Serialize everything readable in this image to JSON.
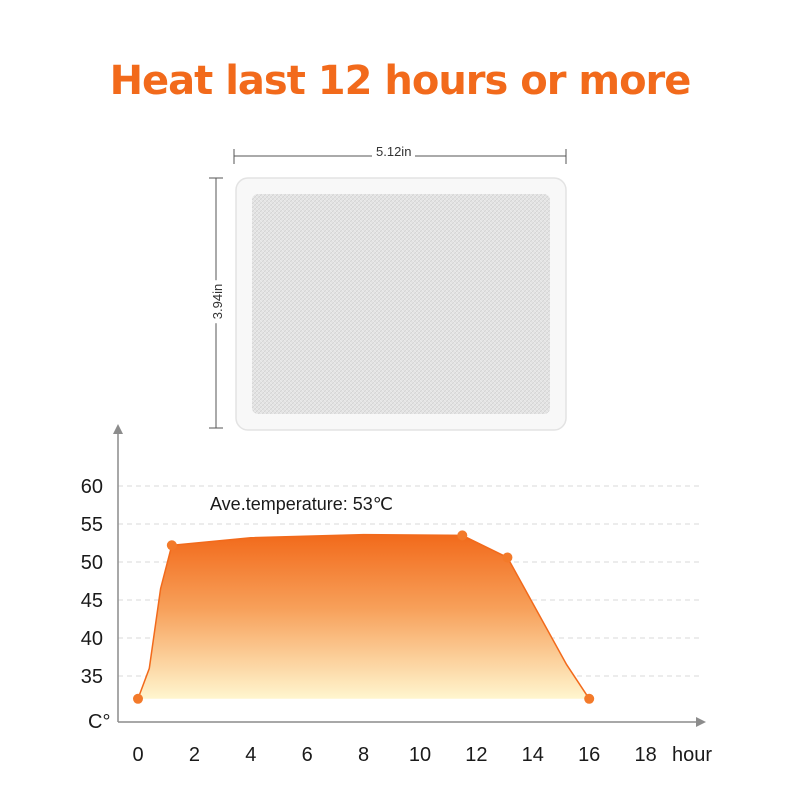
{
  "headline": "Heat last 12 hours or more",
  "product": {
    "width_label": "5.12in",
    "height_label": "3.94in",
    "pad_color": "#f7f7f7",
    "inner_color": "#e2e2e2"
  },
  "colors": {
    "accent": "#f26a1b",
    "point": "#f37a2a",
    "gradient_top": "#f26a1b",
    "gradient_bottom": "#fff6cf"
  },
  "chart_data": {
    "type": "area",
    "title": "",
    "xlabel": "hour",
    "ylabel": "C°",
    "xlim": [
      0,
      18
    ],
    "ylim": [
      30,
      60
    ],
    "xticks": [
      "0",
      "2",
      "4",
      "6",
      "8",
      "10",
      "12",
      "14",
      "16",
      "18"
    ],
    "yticks": [
      "35",
      "40",
      "45",
      "50",
      "55",
      "60"
    ],
    "grid": "dashed horizontal",
    "annotation": "Ave.temperature: 53℃",
    "series": [
      {
        "curve": [
          {
            "x": 0,
            "y": 32.0
          },
          {
            "x": 0.4,
            "y": 36.0
          },
          {
            "x": 0.8,
            "y": 46.5
          },
          {
            "x": 1.2,
            "y": 52.2
          },
          {
            "x": 4,
            "y": 53.2
          },
          {
            "x": 8,
            "y": 53.6
          },
          {
            "x": 11.5,
            "y": 53.5
          },
          {
            "x": 13.1,
            "y": 50.6
          },
          {
            "x": 15.2,
            "y": 36.5
          },
          {
            "x": 16,
            "y": 32.0
          }
        ],
        "markers": [
          {
            "x": 0,
            "y": 32.0
          },
          {
            "x": 1.2,
            "y": 52.2
          },
          {
            "x": 11.5,
            "y": 53.5
          },
          {
            "x": 13.1,
            "y": 50.6
          },
          {
            "x": 16,
            "y": 32.0
          }
        ]
      }
    ]
  }
}
